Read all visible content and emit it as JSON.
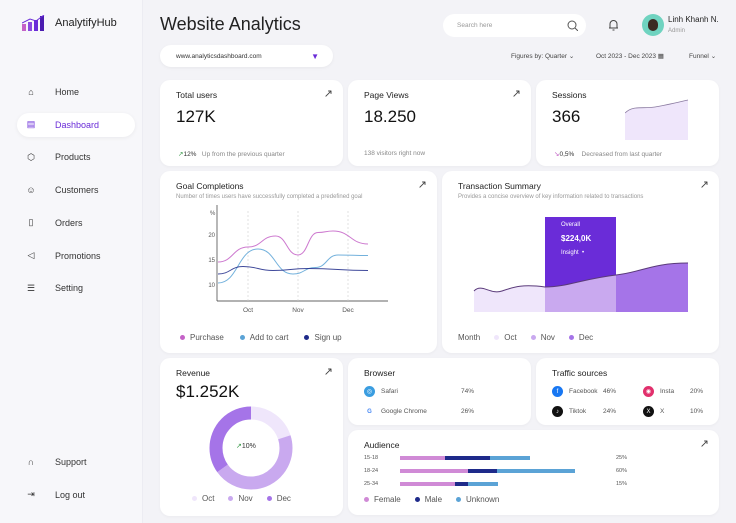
{
  "brand": {
    "name": "AnalytifyHub"
  },
  "sidebar": {
    "items": [
      {
        "label": "Home",
        "icon": "home-icon"
      },
      {
        "label": "Dashboard",
        "icon": "layout-icon",
        "active": true
      },
      {
        "label": "Products",
        "icon": "box-icon"
      },
      {
        "label": "Customers",
        "icon": "user-icon"
      },
      {
        "label": "Orders",
        "icon": "clipboard-icon"
      },
      {
        "label": "Promotions",
        "icon": "megaphone-icon"
      },
      {
        "label": "Setting",
        "icon": "sliders-icon"
      }
    ],
    "bottom": [
      {
        "label": "Support",
        "icon": "headset-icon"
      },
      {
        "label": "Log out",
        "icon": "logout-icon"
      }
    ]
  },
  "header": {
    "title": "Website Analytics",
    "search_placeholder": "Search here",
    "user_name": "Linh Khanh N.",
    "user_role": "Admin"
  },
  "toolbar": {
    "site": "www.analyticsdashboard.com",
    "figures": "Figures by: Quarter",
    "date_range": "Oct 2023 - Dec 2023",
    "view": "Funnel"
  },
  "kpis": [
    {
      "title": "Total users",
      "value": "127K",
      "change": "12%",
      "note": "Up from the previous quarter",
      "trend": "up"
    },
    {
      "title": "Page Views",
      "value": "18.250",
      "note": "138 visitors right now"
    },
    {
      "title": "Sessions",
      "value": "366",
      "change": "0,5%",
      "note": "Decreased from last quarter",
      "trend": "down"
    }
  ],
  "goal": {
    "title": "Goal Completions",
    "subtitle": "Number of times users have successfully completed a predefined goal"
  },
  "transaction": {
    "title": "Transaction Summary",
    "subtitle": "Provides a concise overview of key information related to transactions",
    "tooltip_label": "Overall",
    "tooltip_value": "$224,0K",
    "tooltip_link": "Insight",
    "legend_title": "Month",
    "legend": [
      "Oct",
      "Nov",
      "Dec"
    ]
  },
  "revenue": {
    "title": "Revenue",
    "value": "$1.252K",
    "center": "10%",
    "legend": [
      "Oct",
      "Nov",
      "Dec"
    ],
    "shares": [
      0.2,
      0.45,
      0.35
    ]
  },
  "browser": {
    "title": "Browser",
    "items": [
      {
        "name": "Safari",
        "value": "74%"
      },
      {
        "name": "Google Chrome",
        "value": "26%"
      }
    ]
  },
  "traffic": {
    "title": "Traffic sources",
    "items": [
      {
        "name": "Facebook",
        "value": "46%"
      },
      {
        "name": "Insta",
        "value": "20%"
      },
      {
        "name": "Tiktok",
        "value": "24%"
      },
      {
        "name": "X",
        "value": "10%"
      }
    ]
  },
  "audience": {
    "title": "Audience",
    "rows": [
      {
        "label": "15-18",
        "value": "25%",
        "female": 45,
        "male": 45,
        "unknown": 40
      },
      {
        "label": "18-24",
        "value": "60%",
        "female": 68,
        "male": 29,
        "unknown": 78
      },
      {
        "label": "25-34",
        "value": "15%",
        "female": 55,
        "male": 13,
        "unknown": 30
      }
    ],
    "legend": [
      "Female",
      "Male",
      "Unknown"
    ]
  },
  "colors": {
    "accent": "#6a2cd8",
    "purchase": "#c462c7",
    "cart": "#5ba3d6",
    "signup": "#1e2a8a",
    "oct": "#efe6fb",
    "nov": "#c9a9ef",
    "dec": "#a574e8"
  },
  "chart_data": {
    "type": "line",
    "ylabel": "%",
    "x_ticks": [
      "Oct",
      "Nov",
      "Dec"
    ],
    "y_ticks": [
      10,
      15,
      20
    ],
    "series": [
      {
        "name": "Purchase",
        "points": [
          [
            0.4,
            14.6
          ],
          [
            1,
            17.6
          ],
          [
            1.55,
            19.8
          ],
          [
            2,
            16
          ],
          [
            2.4,
            20.5
          ],
          [
            2.7,
            20.8
          ],
          [
            3.4,
            18.2
          ]
        ]
      },
      {
        "name": "Add to cart",
        "points": [
          [
            0.4,
            10.4
          ],
          [
            1.2,
            17.2
          ],
          [
            1.9,
            12.2
          ],
          [
            2.35,
            13.5
          ],
          [
            2.8,
            16
          ],
          [
            3.4,
            15.9
          ]
        ]
      },
      {
        "name": "Sign up",
        "points": [
          [
            0.4,
            12.2
          ],
          [
            0.9,
            13.7
          ],
          [
            1.5,
            12.9
          ],
          [
            2.2,
            13.3
          ],
          [
            3.4,
            12.9
          ]
        ]
      }
    ]
  }
}
